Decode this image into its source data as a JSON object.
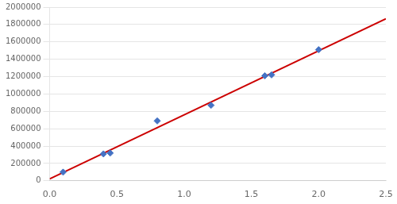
{
  "chart_data": {
    "type": "scatter",
    "series": [
      {
        "type": "line",
        "color": "#CC0000",
        "line_style": "solid",
        "x": [
          0.0,
          2.5
        ],
        "values": [
          22389.26,
          1867171.55
        ]
      },
      {
        "type": "scatter",
        "color": "#4472C4",
        "marker": "diamond",
        "x": [
          0.1,
          0.4,
          0.45,
          0.8,
          1.2,
          1.6,
          1.65,
          2.0
        ],
        "values": [
          100000,
          310000,
          320000,
          690000,
          870000,
          1210000,
          1220000,
          1510000
        ]
      }
    ],
    "xlim": [
      0,
      2.5
    ],
    "xticks": [
      {
        "value": 0,
        "label": "0.0"
      },
      0.5,
      {
        "value": 1.0,
        "label": "1.0"
      },
      1.5,
      {
        "value": 2.0,
        "label": "2.0"
      },
      2.5
    ],
    "ylim": [
      0,
      2000000
    ],
    "yticks": [
      0,
      200000,
      400000,
      600000,
      800000,
      1000000,
      1200000,
      1400000,
      1600000,
      1800000,
      2000000
    ],
    "grid": "y"
  }
}
